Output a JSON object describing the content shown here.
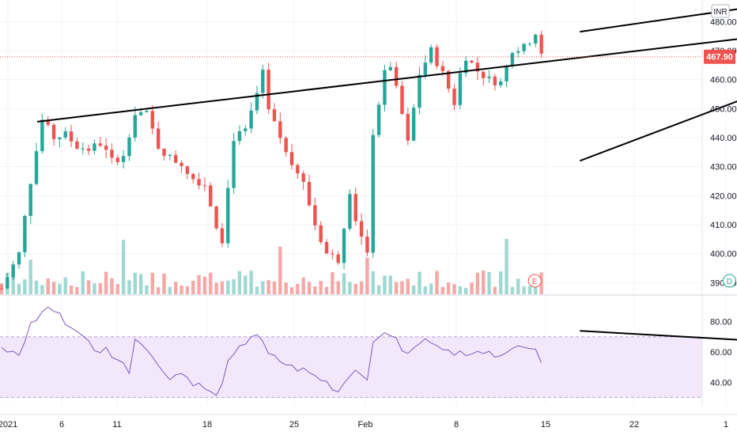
{
  "currency_badge": "INR",
  "current_price_label": "467.90",
  "colors": {
    "up": "#26a69a",
    "down": "#ef5350",
    "volume_up": "#9fd8d2",
    "volume_down": "#f5a8a6",
    "trendline": "#000000",
    "rsi_line": "#7e57c2",
    "rsi_band": "#f3e8fb",
    "price_line": "#ef5350",
    "axis_text": "#131722"
  },
  "chart_data": [
    {
      "type": "candlestick",
      "title": "",
      "xlabel": "",
      "ylabel": "",
      "ylim": [
        386,
        482
      ],
      "ticks_y": [
        "390.00",
        "400.00",
        "410.00",
        "420.00",
        "430.00",
        "440.00",
        "450.00",
        "460.00",
        "470.00",
        "480.00"
      ],
      "ticks_x": [
        "2021",
        "6",
        "11",
        "18",
        "25",
        "Feb",
        "8",
        "15",
        "22",
        "1"
      ],
      "last_price": 467.9,
      "trendlines": [
        {
          "from": [
            0.0,
            445.5
          ],
          "to": [
            32.2,
            481.0
          ]
        },
        {
          "from": [
            20.5,
            432.0
          ],
          "to": [
            32.6,
            476.5
          ]
        },
        {
          "from": [
            20.5,
            476.5
          ],
          "to": [
            27.3,
            486.0
          ]
        }
      ],
      "event_markers": [
        {
          "label": "E",
          "x": 18.9
        },
        {
          "label": "D",
          "x": 25.8
        }
      ],
      "notes": "x values are bar indices from left; ticks map to dates"
    },
    {
      "type": "line",
      "title": "",
      "ylim": [
        25,
        95
      ],
      "ticks_y": [
        "40.00",
        "60.00",
        "80.00"
      ],
      "band": [
        30,
        70
      ],
      "trendline": {
        "from": [
          20.5,
          74.0
        ],
        "to": [
          30.9,
          63.0
        ]
      }
    }
  ]
}
